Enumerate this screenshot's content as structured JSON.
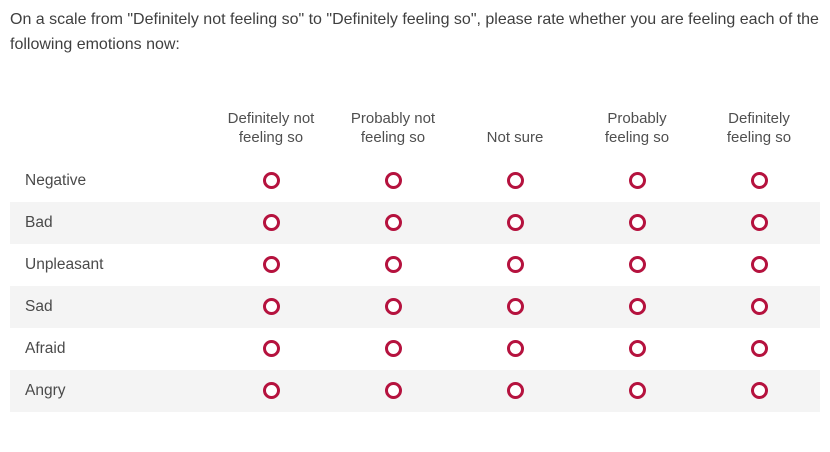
{
  "question": {
    "text": "On a scale from \"Definitely not feeling so\" to \"Definitely feeling so\", please rate whether you are feeling each of the following emotions now:"
  },
  "matrix": {
    "columns": [
      "Definitely not feeling so",
      "Probably not feeling so",
      "Not sure",
      "Probably feeling so",
      "Definitely feeling so"
    ],
    "rows": [
      {
        "label": "Negative"
      },
      {
        "label": "Bad"
      },
      {
        "label": "Unpleasant"
      },
      {
        "label": "Sad"
      },
      {
        "label": "Afraid"
      },
      {
        "label": "Angry"
      }
    ]
  },
  "colors": {
    "radio_accent": "#b5123e",
    "row_stripe": "#f4f4f4",
    "text": "#4a4a4a"
  }
}
